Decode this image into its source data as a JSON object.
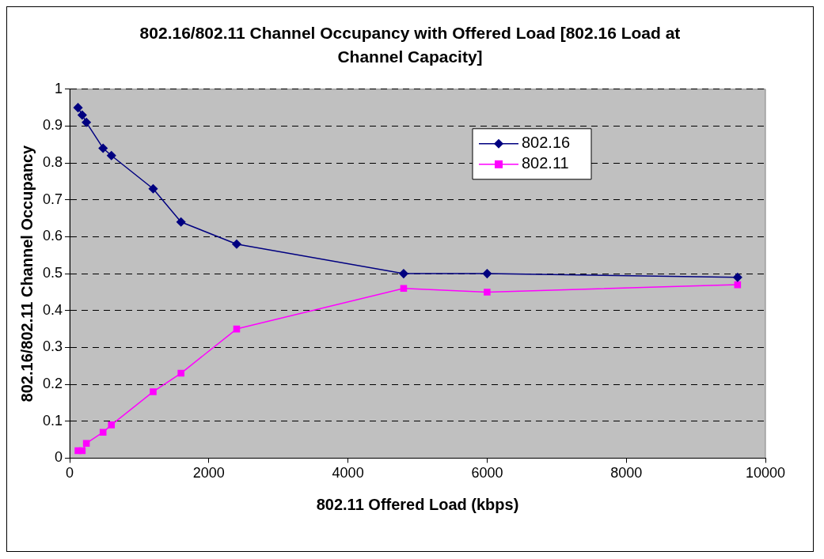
{
  "chart_data": {
    "type": "line",
    "title": "802.16/802.11 Channel Occupancy with Offered Load [802.16 Load at Channel Capacity]",
    "xlabel": "802.11 Offered Load (kbps)",
    "ylabel": "802.16/802.11 Channel Occupancy",
    "x": [
      120,
      180,
      240,
      480,
      600,
      1200,
      1600,
      2400,
      4800,
      6000,
      9600
    ],
    "series": [
      {
        "name": "802.16",
        "color": "#000080",
        "marker": "diamond",
        "values": [
          0.95,
          0.93,
          0.91,
          0.84,
          0.82,
          0.73,
          0.64,
          0.58,
          0.5,
          0.5,
          0.49
        ]
      },
      {
        "name": "802.11",
        "color": "#ff00ff",
        "marker": "square",
        "values": [
          0.02,
          0.02,
          0.04,
          0.07,
          0.09,
          0.18,
          0.23,
          0.35,
          0.46,
          0.45,
          0.47
        ]
      }
    ],
    "xlim": [
      0,
      10000
    ],
    "xticks": [
      0,
      2000,
      4000,
      6000,
      8000,
      10000
    ],
    "ylim": [
      0,
      1
    ],
    "yticks": [
      0,
      0.1,
      0.2,
      0.3,
      0.4,
      0.5,
      0.6,
      0.7,
      0.8,
      0.9,
      1
    ],
    "grid": "y",
    "legend": "top right",
    "line_style": "solid"
  }
}
